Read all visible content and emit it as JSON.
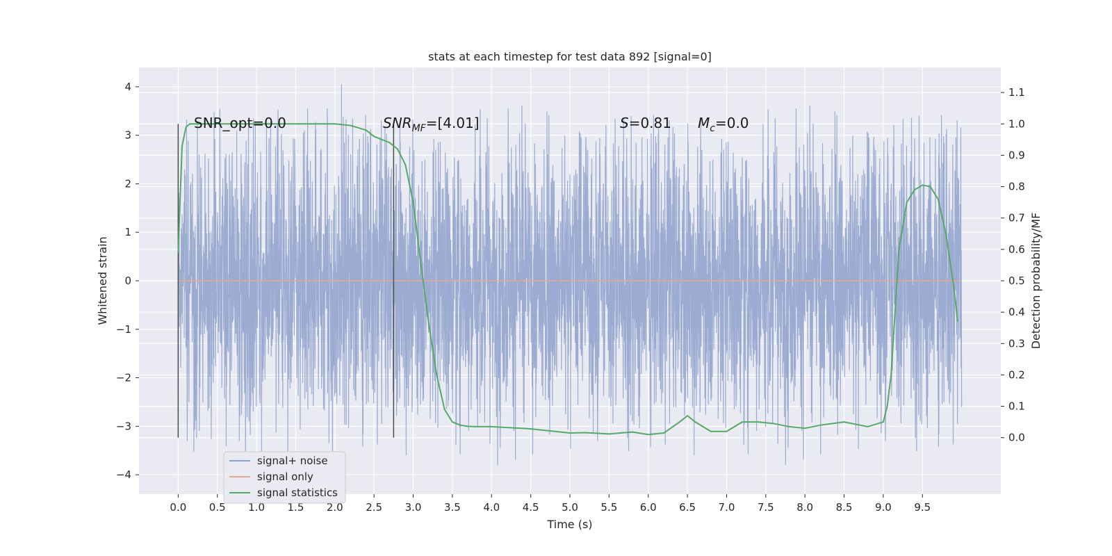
{
  "chart_data": {
    "type": "line",
    "title": "stats at each timestep for test data 892 [signal=0]",
    "xlabel": "Time (s)",
    "ylabel_left": "Whitened strain",
    "ylabel_right": "Detection probability/MF",
    "xlim": [
      -0.5,
      10.5
    ],
    "ylim_left": [
      -4.4,
      4.4
    ],
    "ylim_right": [
      -0.18,
      1.18
    ],
    "xticks": [
      "0.0",
      "0.5",
      "1.0",
      "1.5",
      "2.0",
      "2.5",
      "3.0",
      "3.5",
      "4.0",
      "4.5",
      "5.0",
      "5.5",
      "6.0",
      "6.5",
      "7.0",
      "7.5",
      "8.0",
      "8.5",
      "9.0",
      "9.5"
    ],
    "yticks_left": [
      "4",
      "3",
      "2",
      "1",
      "0",
      "−1",
      "−2",
      "−3",
      "−4"
    ],
    "yticks_right": [
      "1.1",
      "1.0",
      "0.9",
      "0.8",
      "0.7",
      "0.6",
      "0.5",
      "0.4",
      "0.3",
      "0.2",
      "0.1",
      "0.0"
    ],
    "grid": true,
    "legend_position": "lower-left",
    "annotations": {
      "snr_opt": "SNR_opt=0.0",
      "snr_mf_sym": "SNR",
      "snr_mf_sub": "MF",
      "snr_mf_val": "=[4.01]",
      "s_sym": "S",
      "s_val": "=0.81",
      "mc_sym": "M",
      "mc_sub": "c",
      "mc_val": "=0.0"
    },
    "vlines": [
      0.0,
      2.75
    ],
    "series": [
      {
        "name": "signal+ noise",
        "axis": "left",
        "color": "#8da0cb",
        "kind": "noise",
        "x_range": [
          0.0,
          10.0
        ],
        "typical_amplitude": 1.3,
        "max": 4.05,
        "min": -3.8
      },
      {
        "name": "signal only",
        "axis": "left",
        "color": "#e8a78f",
        "x": [
          0.0,
          10.0
        ],
        "y": [
          0.0,
          0.0
        ]
      },
      {
        "name": "signal statistics",
        "axis": "right",
        "color": "#55a868",
        "x": [
          0.0,
          0.05,
          0.1,
          0.15,
          0.2,
          0.3,
          0.5,
          1.0,
          1.5,
          2.0,
          2.2,
          2.4,
          2.5,
          2.6,
          2.7,
          2.8,
          2.9,
          3.0,
          3.1,
          3.2,
          3.3,
          3.4,
          3.5,
          3.6,
          3.7,
          3.8,
          4.0,
          4.5,
          5.0,
          5.2,
          5.5,
          5.8,
          6.0,
          6.2,
          6.4,
          6.5,
          6.6,
          6.8,
          7.0,
          7.2,
          7.4,
          7.6,
          7.8,
          8.0,
          8.2,
          8.5,
          8.8,
          9.0,
          9.05,
          9.1,
          9.15,
          9.2,
          9.3,
          9.4,
          9.5,
          9.6,
          9.7,
          9.8,
          9.9,
          9.95
        ],
        "y": [
          0.59,
          0.93,
          0.99,
          1.0,
          1.0,
          1.0,
          1.0,
          1.0,
          1.0,
          1.0,
          0.995,
          0.98,
          0.96,
          0.95,
          0.94,
          0.92,
          0.87,
          0.75,
          0.55,
          0.36,
          0.2,
          0.09,
          0.05,
          0.04,
          0.036,
          0.035,
          0.035,
          0.028,
          0.015,
          0.016,
          0.012,
          0.018,
          0.01,
          0.015,
          0.05,
          0.07,
          0.05,
          0.02,
          0.02,
          0.05,
          0.05,
          0.045,
          0.035,
          0.03,
          0.04,
          0.05,
          0.035,
          0.05,
          0.1,
          0.2,
          0.4,
          0.6,
          0.75,
          0.79,
          0.805,
          0.8,
          0.76,
          0.65,
          0.48,
          0.37
        ]
      }
    ]
  }
}
